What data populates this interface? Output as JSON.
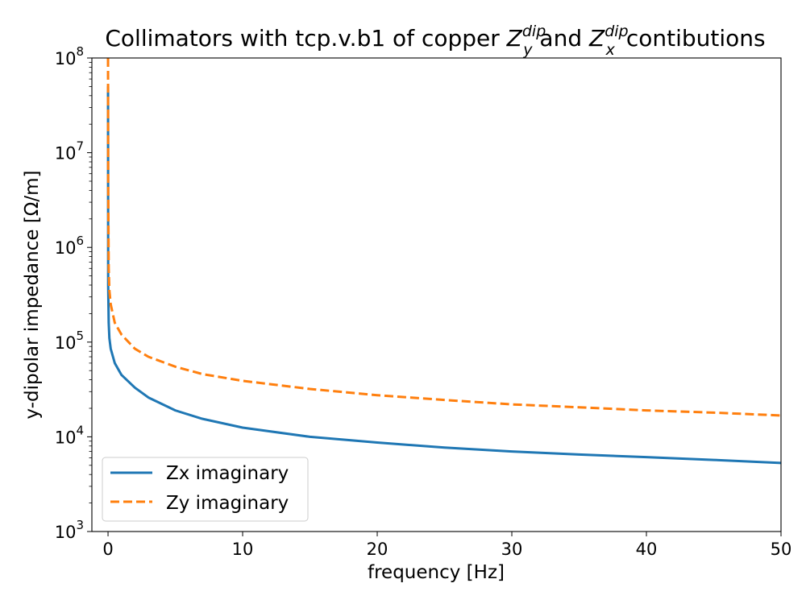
{
  "chart_data": {
    "type": "line",
    "title_parts": {
      "prefix": "Collimators with  tcp.v.b1 of copper ",
      "zy_base": "Z",
      "zy_sup": "dip",
      "zy_sub": "y",
      "middle": " and ",
      "zx_base": "Z",
      "zx_sup": "dip",
      "zx_sub": "x",
      "suffix": "contibutions"
    },
    "xlabel": "frequency [Hz]",
    "ylabel": "y-dipolar impedance [Ω/m]",
    "xlim": [
      -1.2,
      50
    ],
    "ylim": [
      1000,
      100000000
    ],
    "yscale": "log",
    "x_ticks": [
      0,
      10,
      20,
      30,
      40,
      50
    ],
    "y_ticks": [
      {
        "base": "10",
        "exp": "3",
        "value": 1000
      },
      {
        "base": "10",
        "exp": "4",
        "value": 10000
      },
      {
        "base": "10",
        "exp": "5",
        "value": 100000
      },
      {
        "base": "10",
        "exp": "6",
        "value": 1000000
      },
      {
        "base": "10",
        "exp": "7",
        "value": 10000000
      },
      {
        "base": "10",
        "exp": "8",
        "value": 100000000
      }
    ],
    "grid": false,
    "legend_position": "lower-left",
    "series": [
      {
        "name": "Zx imaginary",
        "color": "#1f77b4",
        "dash": "solid",
        "x": [
          0,
          0.01,
          0.05,
          0.1,
          0.2,
          0.5,
          1,
          2,
          3,
          5,
          7,
          10,
          15,
          20,
          25,
          30,
          35,
          40,
          45,
          50
        ],
        "y": [
          50000000,
          400000,
          160000,
          110000,
          85000,
          60000,
          45000,
          33000,
          26000,
          19000,
          15500,
          12500,
          10000,
          8700,
          7700,
          7000,
          6500,
          6100,
          5700,
          5300
        ]
      },
      {
        "name": "Zy imaginary",
        "color": "#ff7f0e",
        "dash": "dashed",
        "x": [
          0,
          0.01,
          0.05,
          0.1,
          0.2,
          0.5,
          1,
          2,
          3,
          5,
          7,
          10,
          15,
          20,
          25,
          30,
          35,
          40,
          45,
          50
        ],
        "y": [
          100000000,
          5000000,
          600000,
          350000,
          250000,
          160000,
          120000,
          85000,
          70000,
          55000,
          46000,
          39000,
          32000,
          27500,
          24500,
          22000,
          20500,
          19000,
          18000,
          16800
        ]
      }
    ]
  }
}
